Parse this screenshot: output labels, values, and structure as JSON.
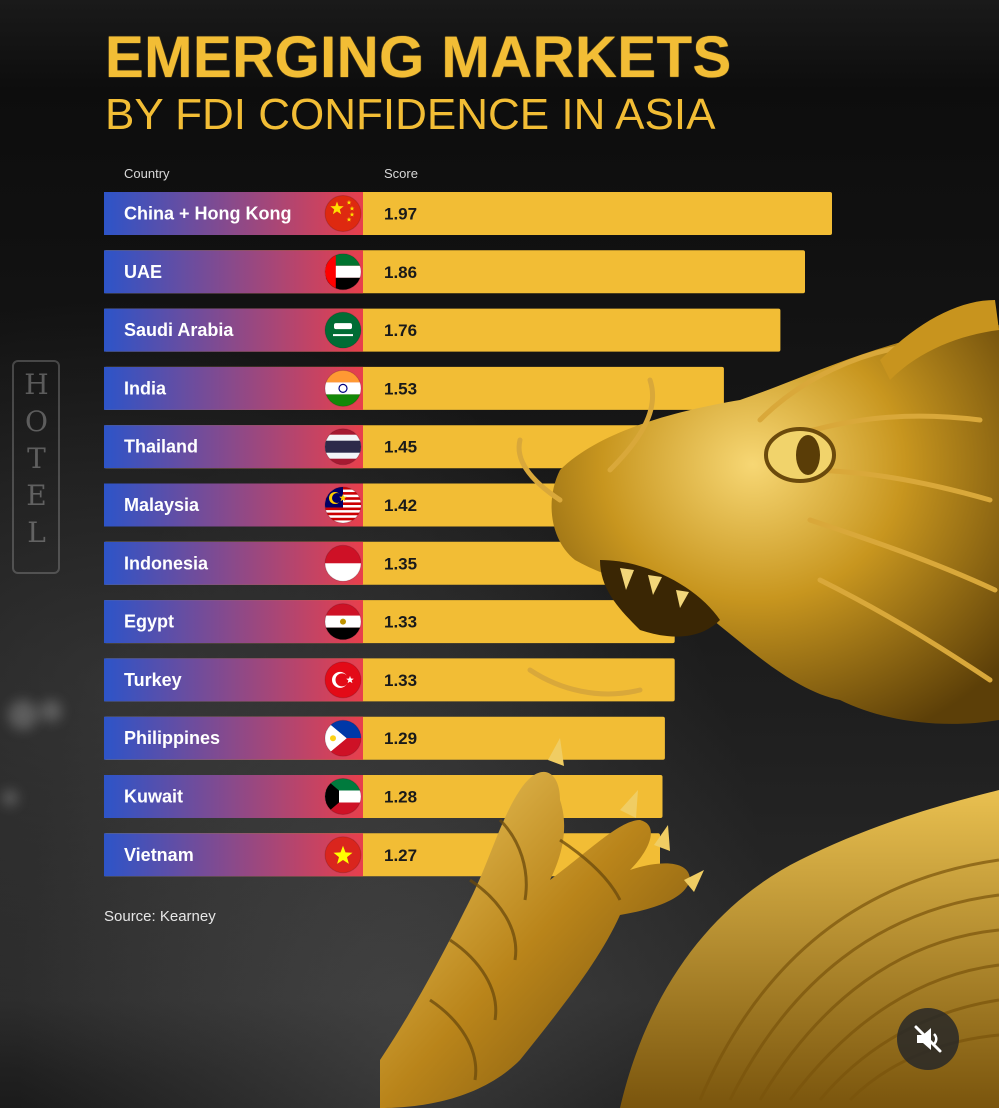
{
  "title": "EMERGING MARKETS",
  "subtitle": "BY FDI CONFIDENCE IN ASIA",
  "source": "Source: Kearney",
  "background_sign": "HOTEL",
  "colors": {
    "title": "#f2bd35",
    "bar": "#f2bd35",
    "label_gradient_start": "#2d54c8",
    "label_gradient_end": "#e83f4c"
  },
  "mute_button_icon": "speaker-muted-icon",
  "chart_data": {
    "type": "bar",
    "orientation": "horizontal",
    "title": "EMERGING MARKETS",
    "subtitle": "BY FDI CONFIDENCE IN ASIA",
    "xlabel": "Score",
    "ylabel": "Country",
    "categories": [
      "China + Hong Kong",
      "UAE",
      "Saudi Arabia",
      "India",
      "Thailand",
      "Malaysia",
      "Indonesia",
      "Egypt",
      "Turkey",
      "Philippines",
      "Kuwait",
      "Vietnam"
    ],
    "values": [
      1.97,
      1.86,
      1.76,
      1.53,
      1.45,
      1.42,
      1.35,
      1.33,
      1.33,
      1.29,
      1.28,
      1.27
    ],
    "value_labels": [
      "1.97",
      "1.86",
      "1.76",
      "1.53",
      "1.45",
      "1.42",
      "1.35",
      "1.33",
      "1.33",
      "1.29",
      "1.28",
      "1.27"
    ],
    "flags": [
      "china-flag-icon",
      "uae-flag-icon",
      "saudi-arabia-flag-icon",
      "india-flag-icon",
      "thailand-flag-icon",
      "malaysia-flag-icon",
      "indonesia-flag-icon",
      "egypt-flag-icon",
      "turkey-flag-icon",
      "philippines-flag-icon",
      "kuwait-flag-icon",
      "vietnam-flag-icon"
    ],
    "grid": false,
    "legend": "none"
  }
}
